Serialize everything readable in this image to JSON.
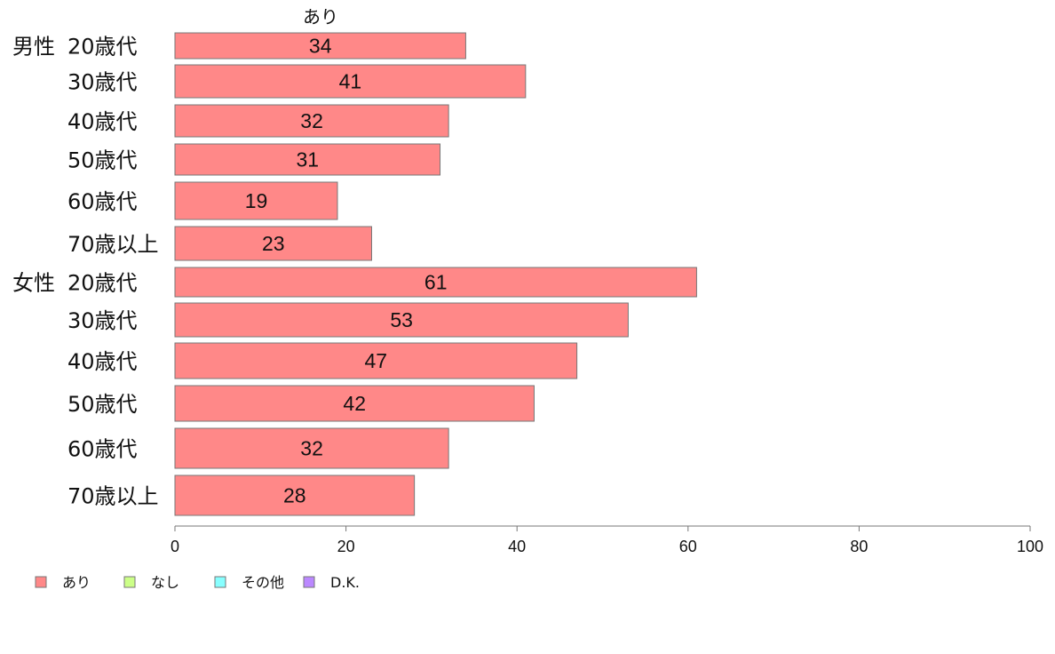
{
  "chart_data": {
    "type": "bar",
    "orientation": "horizontal",
    "series_title": "あり",
    "groups": [
      {
        "label": "男性",
        "categories": [
          "20歳代",
          "30歳代",
          "40歳代",
          "50歳代",
          "60歳代",
          "70歳以上"
        ]
      },
      {
        "label": "女性",
        "categories": [
          "20歳代",
          "30歳代",
          "40歳代",
          "50歳代",
          "60歳代",
          "70歳以上"
        ]
      }
    ],
    "series": [
      {
        "name": "あり",
        "color": "#ff8888",
        "values": [
          34,
          41,
          32,
          31,
          19,
          23,
          61,
          53,
          47,
          42,
          32,
          28
        ]
      }
    ],
    "xlim": [
      0,
      100
    ],
    "xticks": [
      "0",
      "20",
      "40",
      "60",
      "80",
      "100"
    ],
    "grid": false,
    "legend": {
      "position": "bottom-left",
      "items": [
        {
          "label": "あり",
          "color": "#ff8888"
        },
        {
          "label": "なし",
          "color": "#ccff88"
        },
        {
          "label": "その他",
          "color": "#88ffff"
        },
        {
          "label": "D.K.",
          "color": "#bb88ff"
        }
      ]
    }
  }
}
